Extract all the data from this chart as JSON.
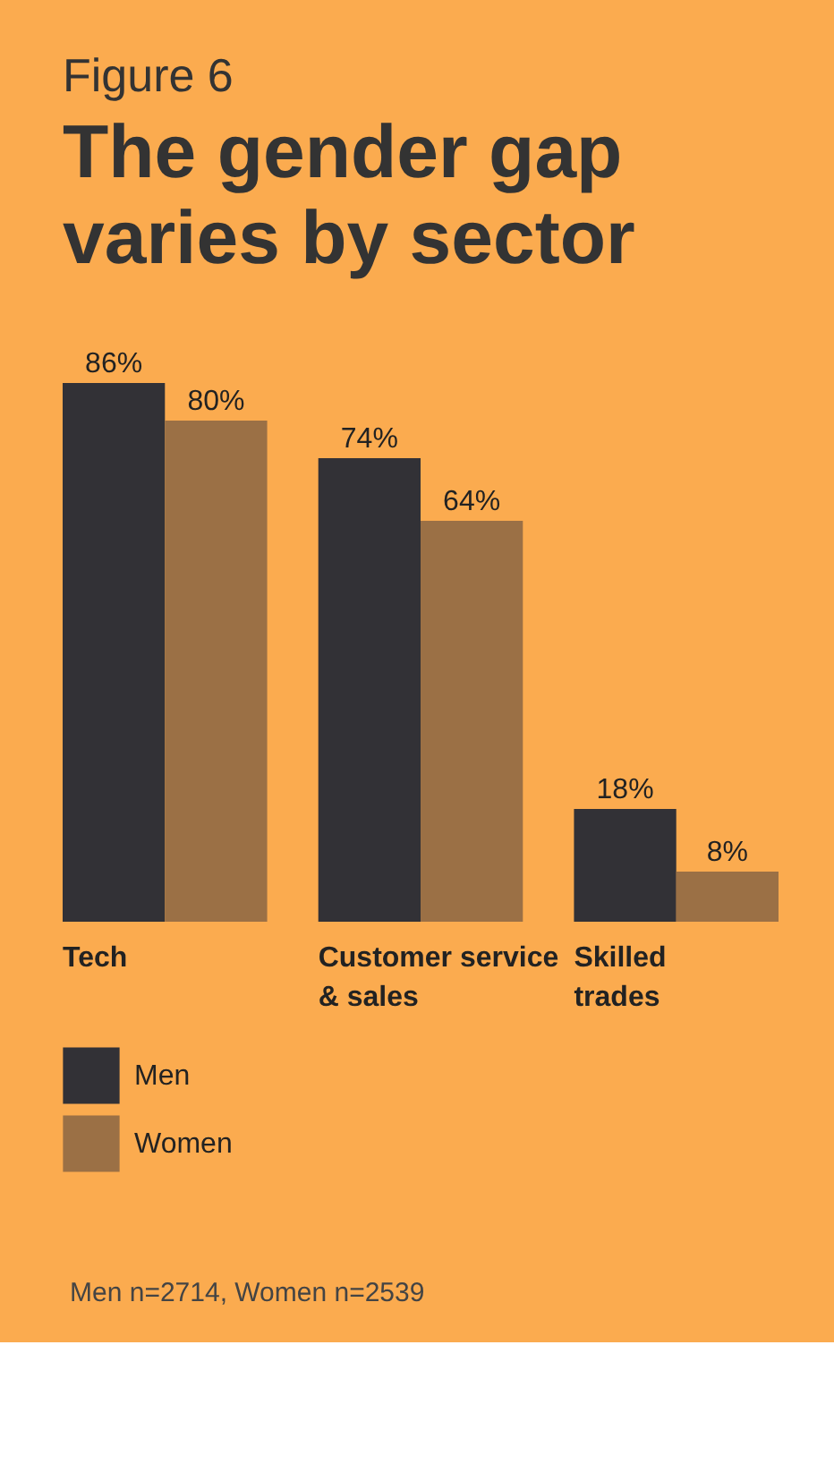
{
  "chart_data": {
    "type": "bar",
    "title": "Figure 6",
    "subtitle": "The gender gap varies by sector",
    "categories": [
      "Tech",
      "Customer service & sales",
      "Skilled trades"
    ],
    "series": [
      {
        "name": "Men",
        "color": "#323136",
        "values": [
          86,
          74,
          18
        ],
        "value_labels": [
          "86%",
          "74%",
          "18%"
        ]
      },
      {
        "name": "Women",
        "color": "#9b7045",
        "values": [
          80,
          64,
          8
        ],
        "value_labels": [
          "80%",
          "64%",
          "8%"
        ]
      }
    ],
    "legend": "bottom left",
    "grid": false,
    "annotations": [
      "Men n=2714, Women n=2539"
    ]
  }
}
